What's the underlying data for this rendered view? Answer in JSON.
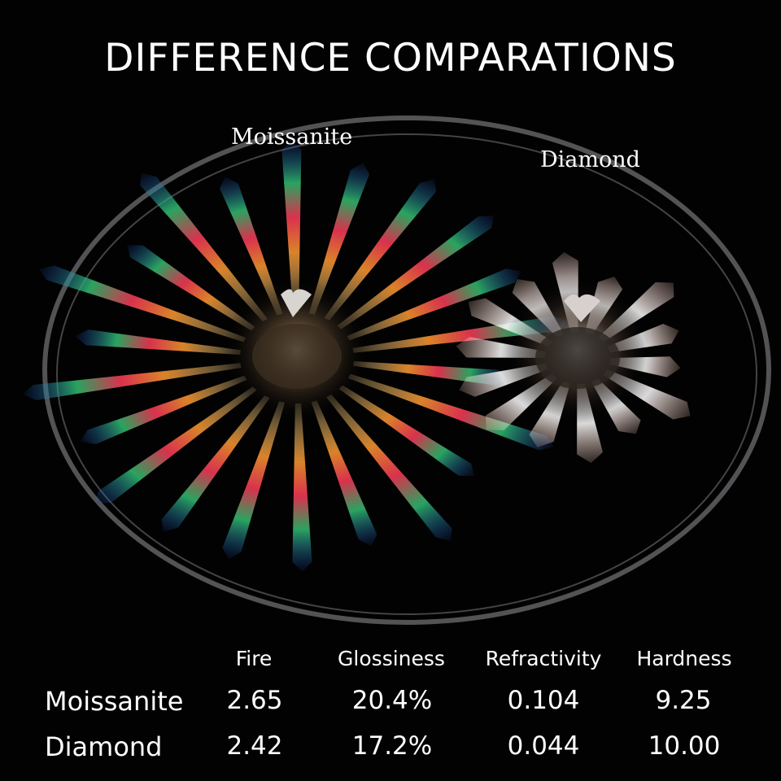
{
  "title": "DIFFERENCE COMPARATIONS",
  "photo": {
    "labels": {
      "moissanite": "Moissanite",
      "diamond": "Diamond"
    }
  },
  "table": {
    "headers": [
      "Fire",
      "Glossiness",
      "Refractivity",
      "Hardness"
    ],
    "rows": [
      {
        "name": "Moissanite",
        "values": [
          "2.65",
          "20.4%",
          "0.104",
          "9.25"
        ]
      },
      {
        "name": "Diamond",
        "values": [
          "2.42",
          "17.2%",
          "0.044",
          "10.00"
        ]
      }
    ]
  }
}
